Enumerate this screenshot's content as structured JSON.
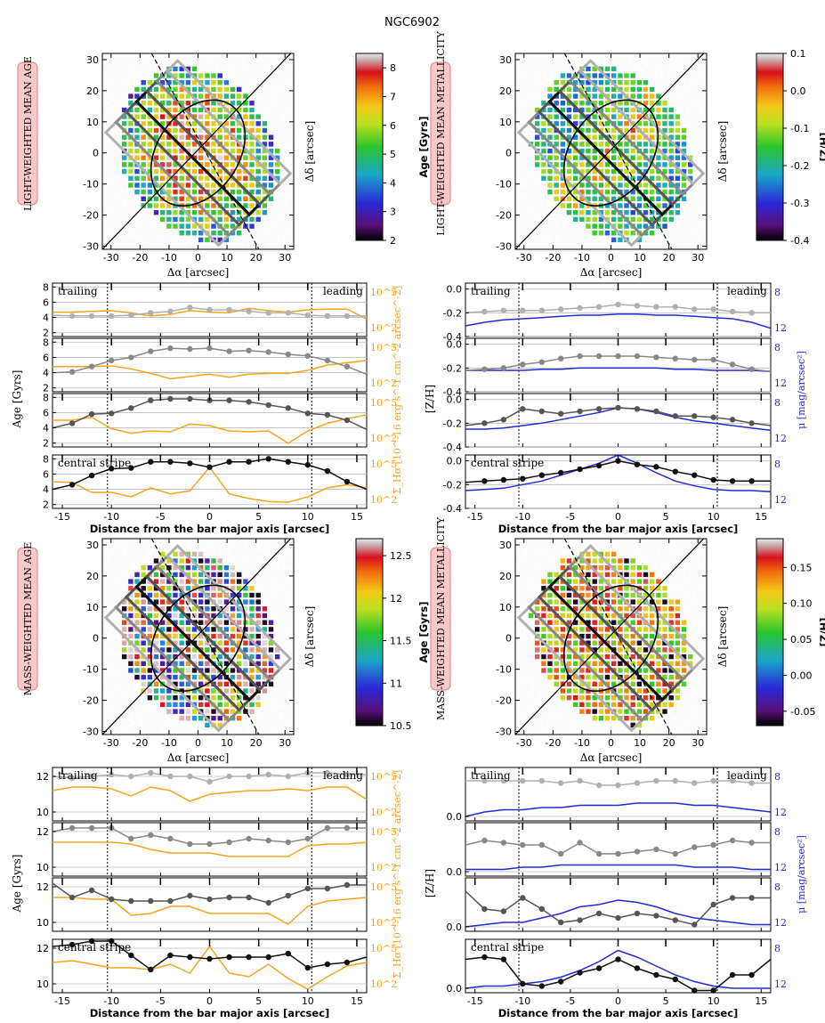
{
  "title": "NGC6902",
  "colors": {
    "orange": "#f5a51d",
    "blue": "#1f2bd6",
    "gray_light": "#b0b0b0",
    "gray_mid": "#888888",
    "gray_dark": "#555555",
    "black": "#111111",
    "label_bg": "#f9c9c9",
    "label_border": "#e07b7b"
  },
  "chart_data": [
    {
      "type": "heatmap",
      "id": "map_lw_age",
      "title": "LIGHT-WEIGHTED MEAN AGE",
      "xlabel": "Δα [arcsec]",
      "ylabel": "Δδ [arcsec]",
      "xlim": [
        -33,
        33
      ],
      "ylim": [
        -31,
        32
      ],
      "xticks": [
        -30,
        -20,
        -10,
        0,
        10,
        20,
        30
      ],
      "yticks": [
        -30,
        -20,
        -10,
        0,
        10,
        20,
        30
      ],
      "colorbar": {
        "label": "Age [Gyrs]",
        "range": [
          2,
          8.5
        ],
        "ticks": [
          2,
          3,
          4,
          5,
          6,
          7,
          8
        ]
      },
      "overlay": {
        "bar_major_axis": "solid diagonal",
        "bar_minor_axis": "dashed diagonal",
        "ellipse": true,
        "stripes": 4
      }
    },
    {
      "type": "heatmap",
      "id": "map_lw_met",
      "title": "LIGHT-WEIGHTED MEAN METALLICITY",
      "xlabel": "Δα [arcsec]",
      "ylabel": "Δδ [arcsec]",
      "xlim": [
        -33,
        33
      ],
      "ylim": [
        -31,
        32
      ],
      "xticks": [
        -30,
        -20,
        -10,
        0,
        10,
        20,
        30
      ],
      "yticks": [
        -30,
        -20,
        -10,
        0,
        10,
        20,
        30
      ],
      "colorbar": {
        "label": "[Z/H]",
        "range": [
          -0.4,
          0.1
        ],
        "ticks": [
          -0.4,
          -0.3,
          -0.2,
          -0.1,
          0.0,
          0.1
        ]
      }
    },
    {
      "type": "heatmap",
      "id": "map_mw_age",
      "title": "MASS-WEIGHTED MEAN AGE",
      "xlabel": "Δα [arcsec]",
      "ylabel": "Δδ [arcsec]",
      "xlim": [
        -33,
        33
      ],
      "ylim": [
        -31,
        32
      ],
      "xticks": [
        -30,
        -20,
        -10,
        0,
        10,
        20,
        30
      ],
      "yticks": [
        -30,
        -20,
        -10,
        0,
        10,
        20,
        30
      ],
      "colorbar": {
        "label": "Age [Gyrs]",
        "range": [
          10.5,
          12.7
        ],
        "ticks": [
          10.5,
          11.0,
          11.5,
          12.0,
          12.5
        ]
      }
    },
    {
      "type": "heatmap",
      "id": "map_mw_met",
      "title": "MASS-WEIGHTED MEAN METALLICITY",
      "xlabel": "Δα [arcsec]",
      "ylabel": "Δδ [arcsec]",
      "xlim": [
        -33,
        33
      ],
      "ylim": [
        -31,
        32
      ],
      "xticks": [
        -30,
        -20,
        -10,
        0,
        10,
        20,
        30
      ],
      "yticks": [
        -30,
        -20,
        -10,
        0,
        10,
        20,
        30
      ],
      "colorbar": {
        "label": "[Z/H]",
        "range": [
          -0.07,
          0.19
        ],
        "ticks": [
          -0.05,
          0.0,
          0.05,
          0.1,
          0.15
        ]
      }
    },
    {
      "type": "line",
      "id": "profiles_lw_age",
      "xlabel": "Distance from the bar major axis [arcsec]",
      "ylabel": "Age [Gyrs]",
      "ylabel_right": "Σ_Hα [10^-16 erg s^-1 cm^-2 arcsec^-2]",
      "xlim": [
        -16,
        16
      ],
      "xticks": [
        -15,
        -10,
        -5,
        0,
        5,
        10,
        15
      ],
      "vlines": [
        -10.4,
        10.4
      ],
      "ylim": [
        1.5,
        8.5
      ],
      "yticks": [
        2,
        4,
        6,
        8
      ],
      "right_ticks": [
        "10^5",
        "10^2"
      ],
      "x": [
        -16,
        -14,
        -12,
        -10,
        -8,
        -6,
        -4,
        -2,
        0,
        2,
        4,
        6,
        8,
        10,
        12,
        14,
        16
      ],
      "panels": [
        {
          "label_left": "trailing",
          "label_right": "leading",
          "color": "#b0b0b0",
          "values": [
            4.3,
            4.2,
            4.2,
            4.2,
            4.3,
            4.6,
            4.8,
            5.3,
            5.0,
            5.0,
            4.8,
            4.6,
            4.6,
            4.3,
            4.2,
            4.2,
            4.2
          ],
          "halpha": [
            4.7,
            4.7,
            4.8,
            4.9,
            4.6,
            4.2,
            4.4,
            4.9,
            4.7,
            4.6,
            5.2,
            4.9,
            4.7,
            5.0,
            5.1,
            5.1,
            3.8
          ]
        },
        {
          "color": "#888888",
          "values": [
            4.0,
            4.1,
            4.8,
            5.6,
            6.0,
            6.8,
            7.2,
            7.1,
            7.2,
            6.8,
            6.9,
            6.7,
            6.4,
            6.2,
            5.6,
            4.8,
            3.8
          ],
          "halpha": [
            4.8,
            4.8,
            4.8,
            4.9,
            4.5,
            3.9,
            3.2,
            3.5,
            3.8,
            3.4,
            3.8,
            3.9,
            3.9,
            4.3,
            5.0,
            5.3,
            5.6
          ]
        },
        {
          "color": "#555555",
          "values": [
            4.0,
            4.6,
            5.8,
            5.9,
            6.6,
            7.6,
            7.8,
            7.8,
            7.6,
            7.6,
            7.4,
            7.0,
            6.6,
            5.9,
            5.7,
            5.0,
            3.8
          ],
          "halpha": [
            5.0,
            5.0,
            5.4,
            3.9,
            3.3,
            3.6,
            3.5,
            4.5,
            4.3,
            3.6,
            3.5,
            3.6,
            2.0,
            3.6,
            4.6,
            5.2,
            5.7
          ]
        },
        {
          "label_left": "central stripe",
          "color": "#111111",
          "values": [
            4.0,
            4.6,
            5.8,
            6.7,
            6.8,
            7.6,
            7.6,
            7.4,
            6.9,
            7.6,
            7.6,
            8.0,
            7.6,
            7.2,
            6.4,
            5.0,
            4.0
          ],
          "halpha": [
            5.0,
            4.9,
            3.6,
            3.6,
            3.0,
            4.2,
            3.4,
            3.8,
            6.9,
            3.4,
            2.8,
            2.4,
            2.3,
            3.0,
            4.2,
            4.6,
            4.2
          ]
        }
      ]
    },
    {
      "type": "line",
      "id": "profiles_lw_met",
      "xlabel": "Distance from the bar major axis [arcsec]",
      "ylabel": "[Z/H]",
      "ylabel_right": "μ [mag/arcsec²]",
      "xlim": [
        -16,
        16
      ],
      "xticks": [
        -15,
        -10,
        -5,
        0,
        5,
        10,
        15
      ],
      "vlines": [
        -10.4,
        10.4
      ],
      "ylim": [
        -0.4,
        0.05
      ],
      "yticks": [
        -0.4,
        -0.2,
        0.0
      ],
      "right_ticks": [
        "8",
        "12"
      ],
      "x": [
        -16,
        -14,
        -12,
        -10,
        -8,
        -6,
        -4,
        -2,
        0,
        2,
        4,
        6,
        8,
        10,
        12,
        14,
        16
      ],
      "panels": [
        {
          "label_left": "trailing",
          "label_right": "leading",
          "color": "#b0b0b0",
          "values": [
            -0.2,
            -0.19,
            -0.18,
            -0.18,
            -0.18,
            -0.17,
            -0.16,
            -0.15,
            -0.13,
            -0.14,
            -0.15,
            -0.15,
            -0.17,
            -0.17,
            -0.19,
            -0.2,
            -0.2
          ],
          "mu": [
            -0.31,
            -0.28,
            -0.26,
            -0.25,
            -0.24,
            -0.23,
            -0.22,
            -0.22,
            -0.21,
            -0.21,
            -0.22,
            -0.22,
            -0.23,
            -0.24,
            -0.25,
            -0.28,
            -0.33
          ]
        },
        {
          "color": "#888888",
          "values": [
            -0.22,
            -0.21,
            -0.2,
            -0.17,
            -0.15,
            -0.12,
            -0.1,
            -0.1,
            -0.1,
            -0.1,
            -0.11,
            -0.12,
            -0.13,
            -0.13,
            -0.17,
            -0.21,
            -0.23
          ],
          "mu": [
            -0.22,
            -0.22,
            -0.22,
            -0.22,
            -0.21,
            -0.21,
            -0.2,
            -0.2,
            -0.2,
            -0.2,
            -0.2,
            -0.21,
            -0.21,
            -0.22,
            -0.22,
            -0.22,
            -0.23
          ]
        },
        {
          "color": "#555555",
          "values": [
            -0.22,
            -0.2,
            -0.17,
            -0.08,
            -0.1,
            -0.12,
            -0.1,
            -0.08,
            -0.07,
            -0.08,
            -0.1,
            -0.14,
            -0.14,
            -0.15,
            -0.17,
            -0.2,
            -0.22
          ],
          "mu": [
            -0.25,
            -0.25,
            -0.24,
            -0.22,
            -0.2,
            -0.17,
            -0.14,
            -0.11,
            -0.07,
            -0.08,
            -0.11,
            -0.15,
            -0.18,
            -0.2,
            -0.22,
            -0.24,
            -0.26
          ]
        },
        {
          "label_left": "central stripe",
          "color": "#111111",
          "values": [
            -0.18,
            -0.17,
            -0.16,
            -0.15,
            -0.12,
            -0.1,
            -0.07,
            -0.04,
            0.0,
            -0.03,
            -0.05,
            -0.09,
            -0.12,
            -0.16,
            -0.17,
            -0.17,
            -0.17
          ],
          "mu": [
            -0.25,
            -0.24,
            -0.23,
            -0.2,
            -0.17,
            -0.12,
            -0.07,
            -0.02,
            0.05,
            -0.02,
            -0.1,
            -0.17,
            -0.21,
            -0.24,
            -0.25,
            -0.25,
            -0.26
          ]
        }
      ]
    },
    {
      "type": "line",
      "id": "profiles_mw_age",
      "xlabel": "Distance from the bar major axis [arcsec]",
      "ylabel": "Age [Gyrs]",
      "ylabel_right": "Σ_Hα [10^-16 erg s^-1 cm^-2 arcsec^-2]",
      "xlim": [
        -16,
        16
      ],
      "xticks": [
        -15,
        -10,
        -5,
        0,
        5,
        10,
        15
      ],
      "vlines": [
        -10.4,
        10.4
      ],
      "ylim": [
        9.5,
        12.5
      ],
      "yticks": [
        10,
        12
      ],
      "right_ticks": [
        "10^5",
        "10^2"
      ],
      "x": [
        -16,
        -14,
        -12,
        -10,
        -8,
        -6,
        -4,
        -2,
        0,
        2,
        4,
        6,
        8,
        10,
        12,
        14,
        16
      ],
      "panels": [
        {
          "label_left": "trailing",
          "label_right": "leading",
          "color": "#b0b0b0",
          "values": [
            12.0,
            11.9,
            12.0,
            12.1,
            12.0,
            12.2,
            12.0,
            12.0,
            11.7,
            12.0,
            12.0,
            12.1,
            12.0,
            12.2,
            12.2,
            12.1,
            12.1
          ],
          "halpha": [
            11.2,
            11.4,
            11.4,
            11.3,
            10.9,
            11.4,
            11.2,
            10.6,
            11.0,
            11.1,
            11.2,
            11.2,
            11.3,
            11.2,
            11.4,
            11.4,
            10.7
          ]
        },
        {
          "color": "#888888",
          "values": [
            12.0,
            12.2,
            12.2,
            12.2,
            11.6,
            11.8,
            11.6,
            11.3,
            11.3,
            11.4,
            11.6,
            11.5,
            11.4,
            11.6,
            12.2,
            12.2,
            12.2
          ],
          "halpha": [
            11.4,
            11.4,
            11.4,
            11.4,
            11.3,
            11.0,
            10.8,
            10.8,
            10.8,
            10.6,
            10.6,
            10.6,
            10.6,
            11.2,
            11.3,
            11.3,
            11.4
          ]
        },
        {
          "color": "#555555",
          "values": [
            12.2,
            11.4,
            11.8,
            11.3,
            11.2,
            11.2,
            11.2,
            11.5,
            11.3,
            11.4,
            11.4,
            11.1,
            11.5,
            11.9,
            11.9,
            12.1,
            12.1
          ],
          "halpha": [
            11.4,
            11.4,
            11.3,
            11.3,
            10.4,
            10.5,
            10.9,
            10.9,
            10.5,
            10.5,
            10.5,
            10.5,
            9.9,
            10.9,
            11.2,
            11.3,
            11.4
          ]
        },
        {
          "label_left": "central stripe",
          "color": "#111111",
          "values": [
            12.1,
            12.2,
            12.4,
            12.4,
            11.6,
            10.8,
            11.6,
            11.5,
            11.4,
            11.5,
            11.5,
            11.5,
            11.7,
            10.9,
            11.1,
            11.2,
            11.5
          ],
          "halpha": [
            11.2,
            11.3,
            11.1,
            10.9,
            10.9,
            10.8,
            11.1,
            10.6,
            12.1,
            10.6,
            10.4,
            11.1,
            10.3,
            9.7,
            10.4,
            11.0,
            11.2
          ]
        }
      ]
    },
    {
      "type": "line",
      "id": "profiles_mw_met",
      "xlabel": "Distance from the bar major axis [arcsec]",
      "ylabel": "[Z/H]",
      "ylabel_right": "μ [mag/arcsec²]",
      "xlim": [
        -16,
        16
      ],
      "xticks": [
        -15,
        -10,
        -5,
        0,
        5,
        10,
        15
      ],
      "vlines": [
        -10.4,
        10.4
      ],
      "ylim": [
        -0.02,
        0.22
      ],
      "yticks": [
        0.0
      ],
      "right_ticks": [
        "8",
        "12"
      ],
      "x": [
        -16,
        -14,
        -12,
        -10,
        -8,
        -6,
        -4,
        -2,
        0,
        2,
        4,
        6,
        8,
        10,
        12,
        14,
        16
      ],
      "panels": [
        {
          "label_left": "trailing",
          "label_right": "leading",
          "color": "#b0b0b0",
          "values": [
            0.16,
            0.16,
            0.16,
            0.16,
            0.16,
            0.15,
            0.16,
            0.14,
            0.14,
            0.15,
            0.16,
            0.16,
            0.15,
            0.16,
            0.16,
            0.15,
            0.15
          ],
          "mu": [
            0.0,
            0.02,
            0.03,
            0.03,
            0.04,
            0.04,
            0.05,
            0.05,
            0.05,
            0.06,
            0.06,
            0.06,
            0.05,
            0.05,
            0.04,
            0.03,
            0.02
          ]
        },
        {
          "color": "#888888",
          "values": [
            0.12,
            0.14,
            0.13,
            0.12,
            0.12,
            0.08,
            0.13,
            0.08,
            0.08,
            0.09,
            0.1,
            0.08,
            0.11,
            0.12,
            0.14,
            0.13,
            0.13
          ],
          "mu": [
            0.01,
            0.01,
            0.01,
            0.02,
            0.02,
            0.03,
            0.03,
            0.03,
            0.03,
            0.03,
            0.03,
            0.03,
            0.02,
            0.02,
            0.02,
            0.01,
            0.01
          ]
        },
        {
          "color": "#555555",
          "values": [
            0.16,
            0.08,
            0.07,
            0.13,
            0.08,
            0.02,
            0.03,
            0.06,
            0.04,
            0.06,
            0.05,
            0.03,
            0.01,
            0.1,
            0.13,
            0.13,
            0.13
          ],
          "mu": [
            0.0,
            0.01,
            0.02,
            0.02,
            0.04,
            0.06,
            0.09,
            0.1,
            0.12,
            0.11,
            0.09,
            0.06,
            0.04,
            0.03,
            0.02,
            0.01,
            0.01
          ]
        },
        {
          "label_left": "central stripe",
          "color": "#111111",
          "values": [
            0.13,
            0.14,
            0.13,
            0.02,
            0.01,
            0.03,
            0.07,
            0.09,
            0.13,
            0.09,
            0.06,
            0.04,
            -0.01,
            -0.01,
            0.06,
            0.06,
            0.13
          ],
          "mu": [
            0.0,
            0.01,
            0.01,
            0.02,
            0.03,
            0.05,
            0.08,
            0.12,
            0.17,
            0.14,
            0.1,
            0.06,
            0.03,
            0.01,
            0.0,
            0.0,
            0.0
          ]
        }
      ]
    }
  ]
}
